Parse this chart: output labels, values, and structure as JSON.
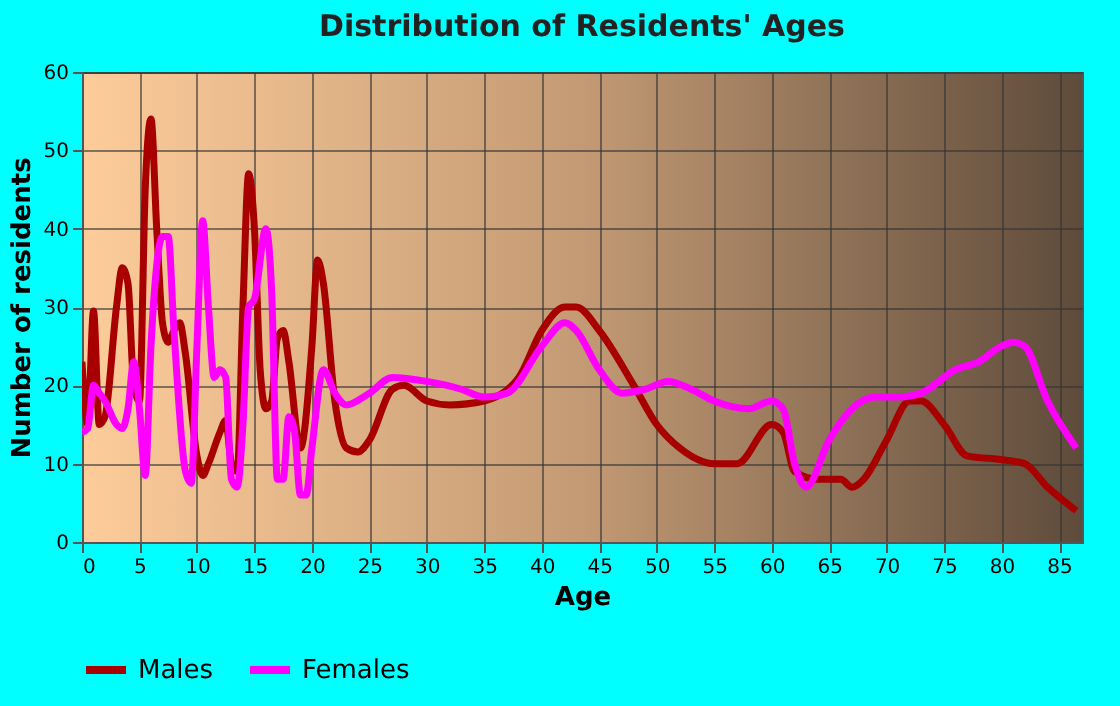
{
  "chart_data": {
    "type": "line",
    "title": "Distribution of Residents' Ages",
    "xlabel": "Age",
    "ylabel": "Number of residents",
    "xlim": [
      0,
      87
    ],
    "xticks": [
      0,
      5,
      10,
      15,
      20,
      25,
      30,
      35,
      40,
      45,
      50,
      55,
      60,
      65,
      70,
      75,
      80,
      85
    ],
    "ylim": [
      0,
      60
    ],
    "yticks": [
      0,
      10,
      20,
      30,
      40,
      50,
      60
    ],
    "grid": true,
    "legend": "bottom",
    "marker": "none",
    "line_style": "solid",
    "series": [
      {
        "name": "Males",
        "color": "#a80000",
        "x": [
          0,
          0.5,
          1,
          1.5,
          2,
          3,
          3.5,
          4,
          4.5,
          5,
          5.5,
          6,
          6.5,
          7,
          7.5,
          8,
          8.5,
          9,
          10,
          10.5,
          11,
          12,
          12.5,
          13,
          13.5,
          14,
          14.5,
          15,
          15.5,
          16,
          16.5,
          17,
          17.5,
          18,
          19,
          20,
          20.5,
          21,
          22,
          23,
          24,
          25,
          27,
          28,
          30,
          32,
          35,
          38,
          40,
          42,
          43,
          45,
          48,
          50,
          52,
          55,
          57,
          60,
          61,
          62,
          64,
          66,
          67,
          68,
          70,
          72,
          73,
          75,
          77,
          80,
          82,
          84,
          86.5
        ],
        "values": [
          23,
          15,
          29.5,
          15,
          16,
          30,
          35,
          33,
          20,
          18,
          45,
          54,
          40,
          28,
          25.5,
          27,
          28,
          24,
          11,
          8.5,
          10,
          14,
          15.5,
          10,
          9,
          30,
          47,
          40,
          22,
          17,
          18,
          26,
          27,
          23,
          12,
          25,
          36,
          33,
          18,
          12,
          11.5,
          13,
          19.5,
          20,
          18,
          17.5,
          18,
          21,
          27,
          30,
          30,
          27,
          20,
          15,
          12,
          10,
          10,
          15,
          14,
          9,
          8,
          8,
          7,
          8,
          13,
          18,
          18,
          15,
          11,
          10.5,
          10,
          7,
          4
        ]
      },
      {
        "name": "Females",
        "color": "#ff00ff",
        "x": [
          0,
          0.5,
          1,
          1.5,
          2,
          3,
          3.5,
          4,
          4.5,
          5,
          5.5,
          6,
          7,
          7.5,
          8,
          9,
          9.5,
          10,
          10.5,
          11,
          11.5,
          12,
          12.5,
          13,
          13.5,
          14,
          14.5,
          15,
          16,
          16.5,
          17,
          17.5,
          18,
          18.5,
          19,
          19.5,
          20,
          21,
          22,
          23,
          25,
          27,
          30,
          33,
          35,
          37,
          40,
          42,
          43,
          45,
          47,
          49,
          51,
          53,
          55,
          58,
          60,
          61,
          62,
          63,
          65,
          67,
          69,
          71,
          73,
          76,
          78,
          80,
          81,
          82,
          84,
          86.5
        ],
        "values": [
          14,
          14.5,
          20,
          19,
          18,
          15,
          14.5,
          17,
          23,
          17,
          8.5,
          25,
          39,
          39,
          27,
          9,
          7.5,
          25,
          41,
          30,
          21,
          22,
          21,
          8,
          7,
          15,
          30,
          31,
          40,
          32,
          8,
          8,
          16,
          14,
          6,
          6,
          12,
          22,
          19,
          17.5,
          19,
          21,
          20.5,
          19.5,
          18.5,
          19,
          25,
          28,
          27,
          22,
          19,
          19.5,
          20.5,
          19.5,
          18,
          17,
          18,
          17,
          10,
          7,
          13,
          17,
          18.5,
          18.5,
          19,
          22,
          23,
          25,
          25.5,
          25,
          18,
          12
        ]
      }
    ]
  }
}
